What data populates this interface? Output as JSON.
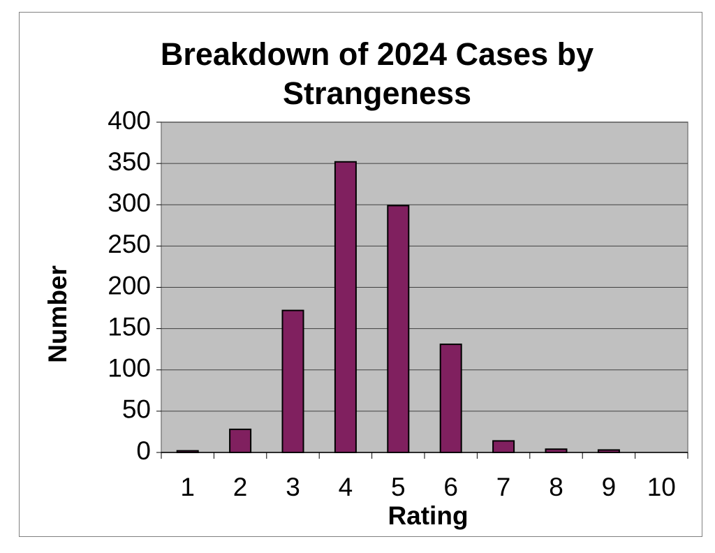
{
  "chart_data": {
    "type": "bar",
    "title": "Breakdown of 2024 Cases by Strangeness",
    "x_label": "Rating",
    "y_label": "Number",
    "categories": [
      "1",
      "2",
      "3",
      "4",
      "5",
      "6",
      "7",
      "8",
      "9",
      "10"
    ],
    "values": [
      2,
      28,
      172,
      352,
      299,
      131,
      14,
      4,
      3,
      0
    ],
    "color": "#80205f",
    "plot_background": "#c0c0c0",
    "ylim": [
      0,
      400
    ],
    "yticks": [
      0,
      50,
      100,
      150,
      200,
      250,
      300,
      350,
      400
    ],
    "grid": true
  }
}
